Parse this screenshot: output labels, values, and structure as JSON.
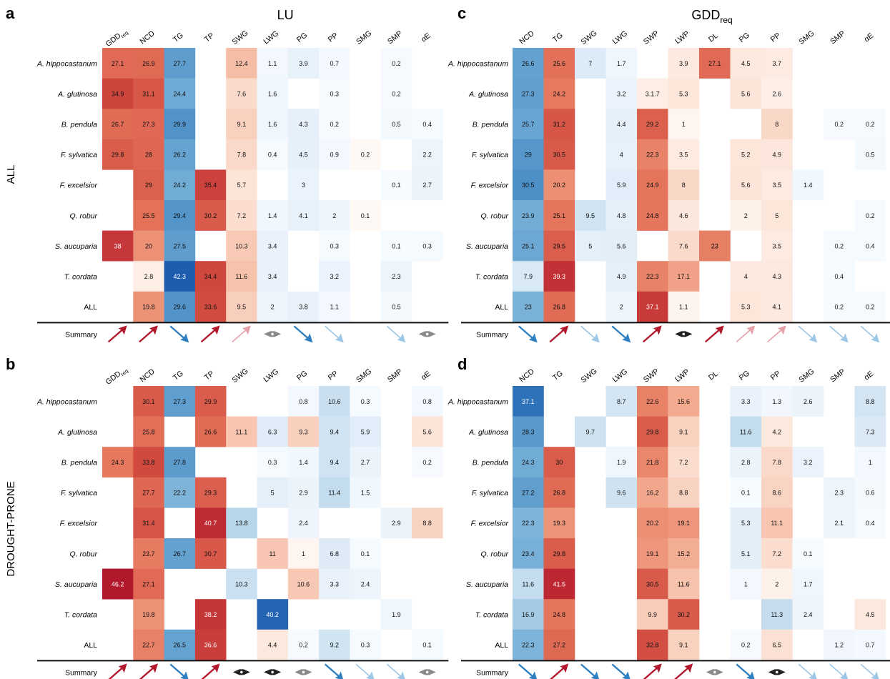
{
  "figure": {
    "row_labels": [
      "ALL",
      "DROUGHT-PRONE"
    ],
    "summary_label": "Summary",
    "arrow_colors": {
      "up_dark": "#b2182b",
      "up_light": "#e6a1a8",
      "down_dark": "#2f7fc1",
      "down_light": "#9cc7e6",
      "neutral": "#8a8a8a",
      "neutral_dark": "#222222"
    }
  },
  "chart_data": [
    {
      "type": "heatmap",
      "panel": "a",
      "title": "LU",
      "title_sub": "",
      "columns": [
        "GDD_req",
        "NCD",
        "TG",
        "TP",
        "SWG",
        "LWG",
        "PG",
        "PP",
        "SMG",
        "SMP",
        "αE"
      ],
      "rows": [
        "A. hippocastanum",
        "A. glutinosa",
        "B. pendula",
        "F. sylvatica",
        "F. excelsior",
        "Q. robur",
        "S. aucuparia",
        "T. cordata",
        "ALL"
      ],
      "values": [
        [
          27.1,
          26.9,
          27.7,
          null,
          12.4,
          1.1,
          3.9,
          0.7,
          null,
          0.2,
          null
        ],
        [
          34.9,
          31.1,
          24.4,
          null,
          7.6,
          1.6,
          null,
          0.3,
          null,
          0.2,
          null
        ],
        [
          26.7,
          27.3,
          29.9,
          null,
          9.1,
          1.6,
          4.3,
          0.2,
          null,
          0.5,
          0.4
        ],
        [
          29.8,
          28,
          26.2,
          null,
          7.8,
          0.4,
          4.5,
          0.9,
          0.2,
          null,
          2.2
        ],
        [
          null,
          29,
          24.2,
          35.4,
          5.7,
          null,
          3,
          null,
          null,
          0.1,
          2.7
        ],
        [
          null,
          25.5,
          29.4,
          30.2,
          7.2,
          1.4,
          4.1,
          2,
          0.1,
          null,
          null
        ],
        [
          38,
          20,
          27.5,
          null,
          10.3,
          3.4,
          null,
          0.3,
          null,
          0.1,
          0.3
        ],
        [
          null,
          2.8,
          42.3,
          34.4,
          11.6,
          3.4,
          null,
          3.2,
          null,
          2.3,
          null
        ],
        [
          null,
          19.8,
          29.6,
          33.6,
          9.5,
          2,
          3.8,
          1.1,
          null,
          0.5,
          null
        ]
      ],
      "direction": [
        1,
        1,
        -1,
        1,
        1,
        -1,
        -1,
        -1,
        null,
        -1,
        -1
      ],
      "summary": [
        "up",
        "up",
        "down",
        "up",
        "up-light",
        "neutral",
        "down",
        "down-light",
        "none",
        "down-light",
        "neutral"
      ]
    },
    {
      "type": "heatmap",
      "panel": "b",
      "title": "",
      "columns": [
        "GDD_req",
        "NCD",
        "TG",
        "TP",
        "SWG",
        "LWG",
        "PG",
        "PP",
        "SMG",
        "SMP",
        "αE"
      ],
      "rows": [
        "A. hippocastanum",
        "A. glutinosa",
        "B. pendula",
        "F. sylvatica",
        "F. excelsior",
        "Q. robur",
        "S. aucuparia",
        "T. cordata",
        "ALL"
      ],
      "values": [
        [
          null,
          30.1,
          27.3,
          29.9,
          null,
          null,
          0.8,
          10.6,
          0.3,
          null,
          0.8
        ],
        [
          null,
          25.8,
          null,
          26.6,
          11.1,
          6.3,
          9.3,
          9.4,
          5.9,
          null,
          5.6
        ],
        [
          24.3,
          33.8,
          27.8,
          null,
          null,
          0.3,
          1.4,
          9.4,
          2.7,
          null,
          0.2
        ],
        [
          null,
          27.7,
          22.2,
          29.3,
          null,
          5,
          2.9,
          11.4,
          1.5,
          null,
          null
        ],
        [
          null,
          31.4,
          null,
          40.7,
          13.8,
          null,
          2.4,
          null,
          null,
          2.9,
          8.8
        ],
        [
          null,
          23.7,
          26.7,
          30.7,
          null,
          11,
          1,
          6.8,
          0.1,
          null,
          null
        ],
        [
          46.2,
          27.1,
          null,
          null,
          10.3,
          null,
          10.6,
          3.3,
          2.4,
          null,
          null
        ],
        [
          null,
          19.8,
          null,
          38.2,
          null,
          40.2,
          null,
          null,
          null,
          1.9,
          null
        ],
        [
          null,
          22.7,
          26.5,
          36.6,
          null,
          4.4,
          0.2,
          9.2,
          0.3,
          null,
          0.1
        ]
      ],
      "direction": [
        1,
        1,
        -1,
        1,
        -1,
        1,
        1,
        -1,
        -1,
        -1,
        1
      ],
      "cell_direction": [
        [
          null,
          1,
          -1,
          1,
          null,
          null,
          -1,
          -1,
          -1,
          null,
          -1
        ],
        [
          null,
          1,
          null,
          1,
          1,
          -1,
          1,
          -1,
          -1,
          null,
          1
        ],
        [
          1,
          1,
          -1,
          null,
          null,
          -1,
          -1,
          -1,
          -1,
          null,
          -1
        ],
        [
          null,
          1,
          -1,
          1,
          null,
          -1,
          -1,
          -1,
          -1,
          null,
          null
        ],
        [
          null,
          1,
          null,
          1,
          -1,
          null,
          -1,
          null,
          null,
          -1,
          1
        ],
        [
          null,
          1,
          -1,
          1,
          null,
          1,
          1,
          -1,
          -1,
          null,
          null
        ],
        [
          1,
          1,
          null,
          null,
          -1,
          null,
          1,
          -1,
          -1,
          null,
          null
        ],
        [
          null,
          1,
          null,
          1,
          null,
          -1,
          null,
          null,
          null,
          -1,
          null
        ],
        [
          null,
          1,
          -1,
          1,
          null,
          1,
          -1,
          -1,
          -1,
          null,
          -1
        ]
      ],
      "summary": [
        "up",
        "up",
        "down",
        "up",
        "neutral-dark",
        "neutral-dark",
        "neutral",
        "down",
        "down-light",
        "down-light",
        "neutral"
      ]
    },
    {
      "type": "heatmap",
      "panel": "c",
      "title": "GDD",
      "title_sub": "req",
      "columns": [
        "NCD",
        "TG",
        "SWG",
        "LWG",
        "SWP",
        "LWP",
        "DL",
        "PG",
        "PP",
        "SMG",
        "SMP",
        "αE"
      ],
      "rows": [
        "A. hippocastanum",
        "A. glutinosa",
        "B. pendula",
        "F. sylvatica",
        "F. excelsior",
        "Q. robur",
        "S. aucuparia",
        "T. cordata",
        "ALL"
      ],
      "values": [
        [
          26.6,
          25.6,
          7,
          1.7,
          null,
          3.9,
          27.1,
          4.5,
          3.7,
          null,
          null,
          null
        ],
        [
          27.3,
          24.2,
          null,
          3.2,
          "3.1.7",
          5.3,
          null,
          5.6,
          2.6,
          null,
          null,
          null
        ],
        [
          25.7,
          31.2,
          null,
          4.4,
          29.2,
          1,
          null,
          null,
          8,
          null,
          0.2,
          0.2
        ],
        [
          29,
          30.5,
          null,
          4,
          22.3,
          3.5,
          null,
          5.2,
          4.9,
          null,
          null,
          0.5
        ],
        [
          30.5,
          20.2,
          null,
          5.9,
          24.9,
          8,
          null,
          5.6,
          3.5,
          1.4,
          null,
          null
        ],
        [
          23.9,
          25.1,
          9.5,
          4.8,
          24.8,
          4.6,
          null,
          2,
          5,
          null,
          null,
          0.2
        ],
        [
          25.1,
          29.5,
          5,
          5.6,
          null,
          7.6,
          23,
          null,
          3.5,
          null,
          0.2,
          0.4
        ],
        [
          7.9,
          39.3,
          null,
          4.9,
          22.3,
          17.1,
          null,
          4,
          4.3,
          null,
          0.4,
          null
        ],
        [
          23,
          26.8,
          null,
          2,
          37.1,
          1.1,
          null,
          5.3,
          4.1,
          null,
          0.2,
          0.2
        ]
      ],
      "direction": [
        -1,
        1,
        -1,
        -1,
        1,
        1,
        1,
        1,
        1,
        -1,
        -1,
        -1
      ],
      "summary": [
        "down",
        "up",
        "down-light",
        "down",
        "up",
        "neutral-dark",
        "up",
        "up-light",
        "up-light",
        "down-light",
        "down-light",
        "down-light"
      ]
    },
    {
      "type": "heatmap",
      "panel": "d",
      "title": "",
      "columns": [
        "NCD",
        "TG",
        "SWG",
        "LWG",
        "SWP",
        "LWP",
        "DL",
        "PG",
        "PP",
        "SMG",
        "SMP",
        "αE"
      ],
      "rows": [
        "A. hippocastanum",
        "A. glutinosa",
        "B. pendula",
        "F. sylvatica",
        "F. excelsior",
        "Q. robur",
        "S. aucuparia",
        "T. cordata",
        "ALL"
      ],
      "values": [
        [
          37.1,
          null,
          null,
          8.7,
          22.6,
          15.6,
          null,
          3.3,
          1.3,
          2.6,
          null,
          8.8
        ],
        [
          28.3,
          null,
          9.7,
          null,
          29.8,
          9.1,
          null,
          11.6,
          4.2,
          null,
          null,
          7.3
        ],
        [
          24.3,
          30,
          null,
          1.9,
          21.8,
          7.2,
          null,
          2.8,
          7.8,
          3.2,
          null,
          1
        ],
        [
          27.2,
          26.8,
          null,
          9.6,
          16.2,
          8.8,
          null,
          0.1,
          8.6,
          null,
          2.3,
          0.6
        ],
        [
          22.3,
          19.3,
          null,
          null,
          20.2,
          19.1,
          null,
          5.3,
          11.1,
          null,
          2.1,
          0.4
        ],
        [
          23.4,
          29.8,
          null,
          null,
          19.1,
          15.2,
          null,
          5.1,
          7.2,
          0.1,
          null,
          null
        ],
        [
          11.6,
          41.5,
          null,
          null,
          30.5,
          11.6,
          null,
          1,
          2,
          1.7,
          null,
          null
        ],
        [
          16.9,
          24.8,
          null,
          null,
          9.9,
          30.2,
          null,
          null,
          11.3,
          2.4,
          null,
          4.5
        ],
        [
          22.3,
          27.2,
          null,
          null,
          32.8,
          9.1,
          null,
          0.2,
          6.5,
          null,
          1.2,
          0.7
        ]
      ],
      "direction": [
        -1,
        1,
        -1,
        -1,
        1,
        1,
        null,
        -1,
        1,
        -1,
        -1,
        -1
      ],
      "cell_direction": [
        [
          -1,
          null,
          null,
          -1,
          1,
          1,
          null,
          -1,
          -1,
          -1,
          null,
          -1
        ],
        [
          -1,
          null,
          -1,
          null,
          1,
          1,
          null,
          -1,
          1,
          null,
          null,
          -1
        ],
        [
          -1,
          1,
          null,
          -1,
          1,
          1,
          null,
          -1,
          1,
          -1,
          null,
          -1
        ],
        [
          -1,
          1,
          null,
          -1,
          1,
          1,
          null,
          -1,
          1,
          null,
          -1,
          -1
        ],
        [
          -1,
          1,
          null,
          null,
          1,
          1,
          null,
          -1,
          1,
          null,
          -1,
          -1
        ],
        [
          -1,
          1,
          null,
          null,
          1,
          1,
          null,
          -1,
          1,
          -1,
          null,
          null
        ],
        [
          -1,
          1,
          null,
          null,
          1,
          1,
          null,
          -1,
          1,
          -1,
          null,
          null
        ],
        [
          -1,
          1,
          null,
          null,
          1,
          1,
          null,
          null,
          -1,
          -1,
          null,
          1
        ],
        [
          -1,
          1,
          null,
          null,
          1,
          1,
          null,
          -1,
          1,
          null,
          -1,
          -1
        ]
      ],
      "summary": [
        "down",
        "up",
        "down",
        "down",
        "up",
        "up",
        "neutral",
        "down",
        "neutral-dark",
        "down-light",
        "down-light",
        "down-light"
      ]
    }
  ]
}
